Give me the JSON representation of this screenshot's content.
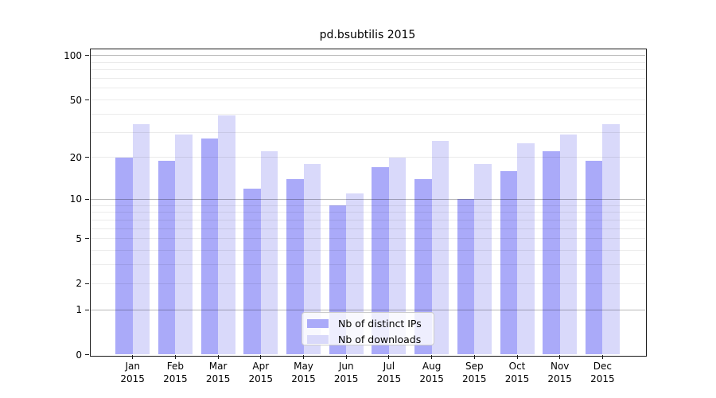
{
  "title": "pd.bsubtilis 2015",
  "legend": {
    "items": [
      {
        "label": "Nb of distinct IPs",
        "color": "#aaaaf9"
      },
      {
        "label": "Nb of downloads",
        "color": "#d9d9fa"
      }
    ]
  },
  "y_axis": {
    "tick_values": [
      100,
      50,
      20,
      10,
      5,
      2,
      1,
      0
    ],
    "tick_labels": [
      "100",
      "50",
      "20",
      "10",
      "5",
      "2",
      "1",
      "0"
    ]
  },
  "x_axis": {
    "months": [
      "Jan",
      "Feb",
      "Mar",
      "Apr",
      "May",
      "Jun",
      "Jul",
      "Aug",
      "Sep",
      "Oct",
      "Nov",
      "Dec"
    ],
    "year": "2015"
  },
  "chart_data": {
    "type": "bar",
    "title": "pd.bsubtilis 2015",
    "scale": "log10(1+y)",
    "categories": [
      "Jan 2015",
      "Feb 2015",
      "Mar 2015",
      "Apr 2015",
      "May 2015",
      "Jun 2015",
      "Jul 2015",
      "Aug 2015",
      "Sep 2015",
      "Oct 2015",
      "Nov 2015",
      "Dec 2015"
    ],
    "series": [
      {
        "name": "Nb of distinct IPs",
        "color": "#aaaaf9",
        "values": [
          20,
          19,
          27,
          12,
          14,
          9,
          17,
          14,
          10,
          16,
          22,
          19
        ]
      },
      {
        "name": "Nb of downloads",
        "color": "#d9d9fa",
        "values": [
          34,
          29,
          39,
          22,
          18,
          11,
          20,
          26,
          18,
          25,
          29,
          34
        ]
      }
    ],
    "ylim": [
      0,
      111
    ],
    "yticks": [
      0,
      1,
      2,
      5,
      10,
      20,
      50,
      100
    ],
    "major_gridlines": [
      1,
      10,
      100
    ],
    "minor_gridlines": [
      2,
      3,
      4,
      5,
      6,
      7,
      8,
      9,
      20,
      30,
      40,
      50,
      60,
      70,
      80,
      90
    ],
    "grid": true,
    "legend_position": "lower center",
    "xlabel": "",
    "ylabel": ""
  }
}
